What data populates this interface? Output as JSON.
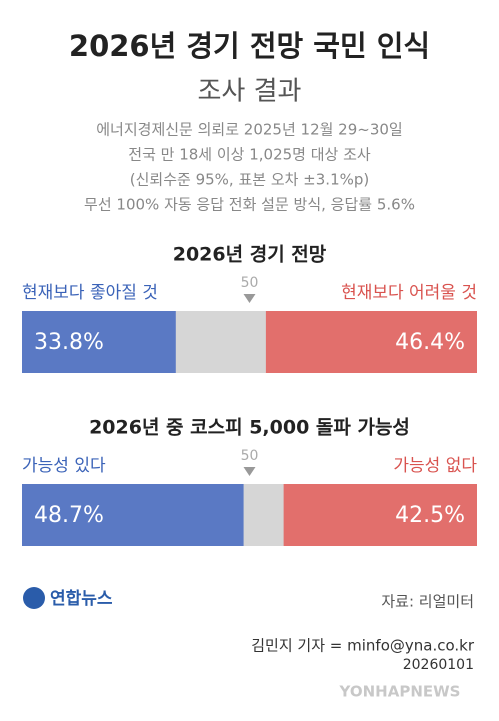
{
  "title": "2026년 경기 전망 국민 인식",
  "subtitle": "조사 결과",
  "notes": [
    "에너지경제신문 의뢰로 2025년 12월 29~30일",
    "전국 만 18세 이상 1,025명 대상 조사",
    "(신뢰수준 95%, 표본 오차 ±3.1%p)",
    "무선 100% 자동 응답 전화 설문 방식, 응답률 5.6%"
  ],
  "chart_data": [
    {
      "type": "stacked_bar",
      "title": "2026년 경기 전망",
      "xlim": [
        0,
        100
      ],
      "xticks": [
        50
      ],
      "series": [
        {
          "name": "현재보다 좋아질 것",
          "color": "#5a79c4",
          "values": [
            33.8
          ],
          "value_labels": [
            "33.8%"
          ],
          "side": "left"
        },
        {
          "name": "현재보다 어려울 것",
          "color": "#e26f6c",
          "values": [
            46.4
          ],
          "value_labels": [
            "46.4%"
          ],
          "side": "right"
        }
      ]
    },
    {
      "type": "stacked_bar",
      "title": "2026년 중 코스피 5,000 돌파 가능성",
      "xlim": [
        0,
        100
      ],
      "xticks": [
        50
      ],
      "series": [
        {
          "name": "가능성 있다",
          "color": "#5a79c4",
          "values": [
            48.7
          ],
          "value_labels": [
            "48.7%"
          ],
          "side": "left"
        },
        {
          "name": "가능성 없다",
          "color": "#e26f6c",
          "values": [
            42.5
          ],
          "value_labels": [
            "42.5%"
          ],
          "side": "right"
        }
      ]
    }
  ],
  "logo": "연합뉴스",
  "source": "자료: 리얼미터",
  "credit": "김민지 기자 = minfo@yna.co.kr",
  "date": "20260101",
  "watermark": "YONHAPNEWS"
}
